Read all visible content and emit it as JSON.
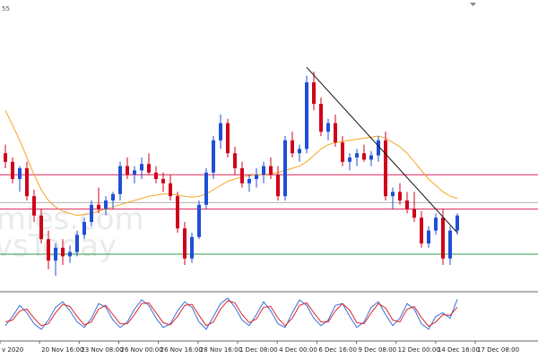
{
  "corner_label": "55",
  "watermark": {
    "line1": "mies.com",
    "line2": "vsToday"
  },
  "colors": {
    "up": "#1f4fd6",
    "down": "#d0021b",
    "ma": "#f5a623",
    "stoch_main": "#3a6fdc",
    "stoch_signal": "#e02424",
    "h_line": "#e0215a",
    "support": "#2e9e44",
    "grey_line": "#b0b0b0",
    "trendline": "#111111",
    "frame": "#666666"
  },
  "chart_data": {
    "type": "candlestick",
    "main_ylim": [
      0,
      100
    ],
    "candles": [
      [
        62,
        66,
        55,
        58
      ],
      [
        58,
        60,
        48,
        50
      ],
      [
        50,
        56,
        44,
        55
      ],
      [
        55,
        58,
        40,
        42
      ],
      [
        42,
        45,
        30,
        33
      ],
      [
        33,
        36,
        20,
        22
      ],
      [
        22,
        26,
        8,
        12
      ],
      [
        12,
        20,
        5,
        18
      ],
      [
        18,
        22,
        10,
        14
      ],
      [
        14,
        19,
        11,
        16
      ],
      [
        16,
        26,
        14,
        24
      ],
      [
        24,
        32,
        22,
        30
      ],
      [
        30,
        40,
        28,
        38
      ],
      [
        38,
        46,
        34,
        36
      ],
      [
        36,
        42,
        33,
        40
      ],
      [
        40,
        44,
        36,
        43
      ],
      [
        43,
        58,
        40,
        56
      ],
      [
        56,
        60,
        50,
        52
      ],
      [
        52,
        56,
        48,
        54
      ],
      [
        54,
        60,
        50,
        57
      ],
      [
        57,
        62,
        52,
        53
      ],
      [
        53,
        56,
        48,
        50
      ],
      [
        50,
        53,
        44,
        48
      ],
      [
        48,
        52,
        40,
        42
      ],
      [
        42,
        44,
        25,
        27
      ],
      [
        27,
        30,
        10,
        13
      ],
      [
        13,
        25,
        11,
        23
      ],
      [
        23,
        40,
        22,
        38
      ],
      [
        38,
        55,
        36,
        53
      ],
      [
        53,
        70,
        50,
        68
      ],
      [
        68,
        80,
        64,
        76
      ],
      [
        76,
        78,
        60,
        62
      ],
      [
        62,
        65,
        52,
        55
      ],
      [
        55,
        58,
        46,
        48
      ],
      [
        48,
        52,
        44,
        50
      ],
      [
        50,
        55,
        46,
        52
      ],
      [
        52,
        58,
        48,
        56
      ],
      [
        56,
        60,
        50,
        52
      ],
      [
        52,
        56,
        40,
        42
      ],
      [
        42,
        70,
        40,
        68
      ],
      [
        68,
        72,
        60,
        62
      ],
      [
        62,
        66,
        58,
        64
      ],
      [
        64,
        98,
        62,
        95
      ],
      [
        95,
        100,
        82,
        85
      ],
      [
        85,
        88,
        70,
        72
      ],
      [
        72,
        78,
        68,
        76
      ],
      [
        76,
        80,
        65,
        67
      ],
      [
        67,
        70,
        56,
        58
      ],
      [
        58,
        62,
        54,
        60
      ],
      [
        60,
        64,
        56,
        62
      ],
      [
        62,
        66,
        58,
        59
      ],
      [
        59,
        63,
        56,
        61
      ],
      [
        61,
        70,
        58,
        68
      ],
      [
        68,
        72,
        40,
        42
      ],
      [
        42,
        46,
        36,
        44
      ],
      [
        44,
        48,
        38,
        40
      ],
      [
        40,
        44,
        34,
        36
      ],
      [
        36,
        44,
        30,
        32
      ],
      [
        32,
        35,
        18,
        20
      ],
      [
        20,
        28,
        18,
        26
      ],
      [
        26,
        34,
        24,
        32
      ],
      [
        32,
        36,
        10,
        13
      ],
      [
        13,
        28,
        10,
        26
      ],
      [
        26,
        34,
        24,
        33
      ]
    ],
    "moving_average": [
      82,
      75,
      68,
      60,
      52,
      45,
      40,
      37,
      35,
      34,
      33,
      33.5,
      34,
      35,
      36,
      37,
      38,
      39,
      40,
      41,
      42,
      42.5,
      43,
      43,
      42.5,
      42,
      41.5,
      42,
      43,
      45,
      47,
      49,
      50,
      51,
      51.5,
      52,
      52,
      52.5,
      53,
      54,
      55,
      56,
      58,
      61,
      64,
      66,
      67,
      67.5,
      68,
      68.5,
      69,
      69.5,
      70,
      69,
      67,
      65,
      62,
      58,
      54,
      50,
      47,
      44,
      42,
      41
    ],
    "horizontal_lines": {
      "upper": 52,
      "grey": 39,
      "lower": 36,
      "support": 15
    },
    "trendline": [
      [
        42,
        102
      ],
      [
        63,
        25
      ]
    ],
    "stochastic": {
      "ylim": [
        0,
        100
      ],
      "main": [
        20,
        45,
        75,
        55,
        25,
        10,
        35,
        70,
        85,
        60,
        30,
        15,
        40,
        80,
        70,
        35,
        15,
        30,
        65,
        90,
        75,
        40,
        15,
        25,
        60,
        85,
        70,
        30,
        10,
        45,
        80,
        95,
        70,
        35,
        20,
        50,
        85,
        60,
        25,
        15,
        55,
        90,
        75,
        40,
        20,
        35,
        75,
        80,
        45,
        15,
        30,
        70,
        85,
        50,
        20,
        40,
        80,
        65,
        25,
        10,
        45,
        55,
        40,
        92
      ],
      "signal": [
        30,
        35,
        60,
        65,
        40,
        20,
        25,
        55,
        78,
        72,
        45,
        22,
        30,
        65,
        75,
        50,
        25,
        25,
        50,
        80,
        82,
        55,
        28,
        22,
        45,
        75,
        78,
        48,
        20,
        30,
        65,
        88,
        82,
        50,
        28,
        38,
        70,
        72,
        40,
        20,
        40,
        75,
        82,
        55,
        30,
        30,
        60,
        80,
        62,
        28,
        25,
        55,
        80,
        68,
        35,
        30,
        65,
        72,
        42,
        18,
        30,
        50,
        48,
        70
      ]
    },
    "x_tick_labels": [
      "v 2020",
      "20 Nov 16:00",
      "23 Nov 08:00",
      "26 Nov 00:00",
      "26 Nov 16:00",
      "28 Nov 16:00",
      "1 Dec 08:00",
      "4 Dec 00:00",
      "6 Dec 16:00",
      "9 Dec 08:00",
      "12 Dec 00:00",
      "14 Dec 16:00",
      "17 Dec 08:00"
    ]
  }
}
